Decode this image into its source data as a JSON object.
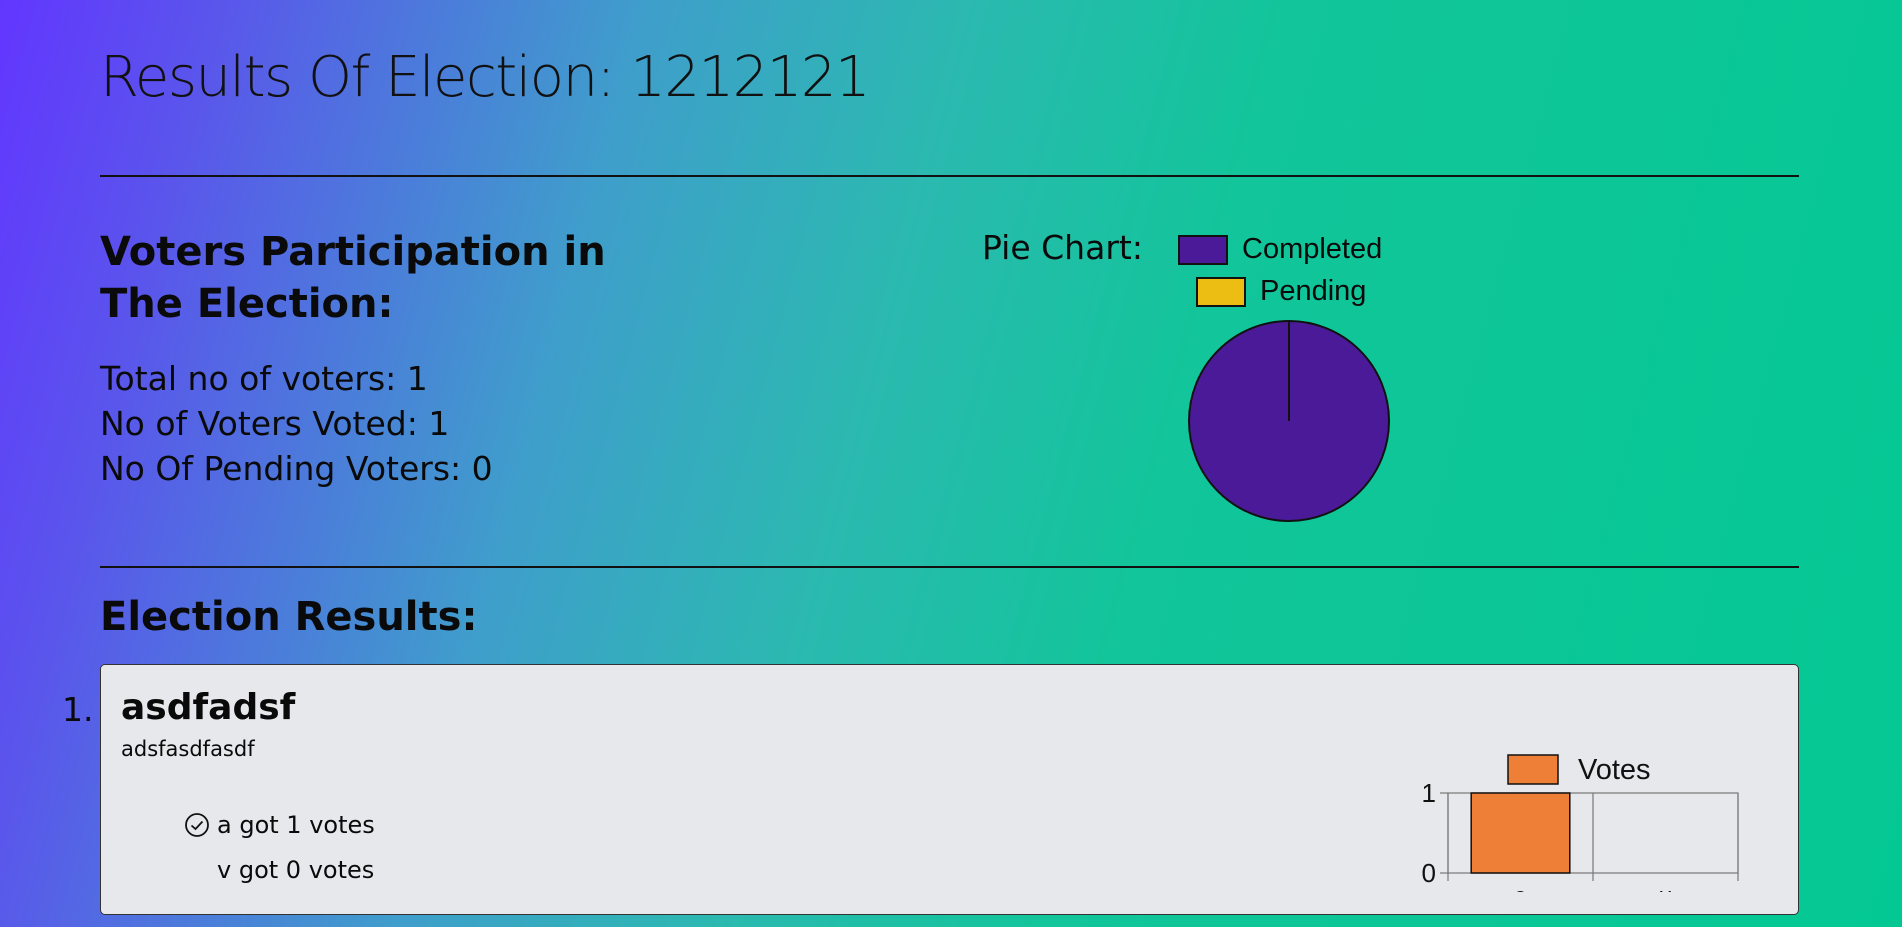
{
  "page": {
    "title": "Results Of Election: 1212121"
  },
  "participation": {
    "heading": "Voters Participation in The Election:",
    "total_label": "Total no of voters: 1",
    "voted_label": "No of Voters Voted: 1",
    "pending_label": "No Of Pending Voters: 0",
    "pie_label": "Pie Chart:"
  },
  "results": {
    "heading": "Election Results:",
    "items": [
      {
        "number": "1.",
        "title": "asdfadsf",
        "description": "adsfasdfasdf",
        "vote_lines": [
          "a got 1 votes",
          "v got 0 votes"
        ]
      }
    ]
  },
  "icons": {
    "winner": "check-circle-icon"
  },
  "colors": {
    "completed": "#4b1a98",
    "pending": "#ecbd12",
    "votes": "#ed7f36"
  },
  "chart_data": [
    {
      "type": "pie",
      "labels": [
        "Completed",
        "Pending"
      ],
      "values": [
        1,
        0
      ],
      "legend": [
        "Completed",
        "Pending"
      ],
      "legend_position": "top"
    },
    {
      "type": "bar",
      "categories": [
        "a",
        "v"
      ],
      "series": [
        {
          "name": "Votes",
          "values": [
            1,
            0
          ]
        }
      ],
      "ylim": [
        0,
        1
      ],
      "yticks": [
        0,
        1
      ],
      "legend_position": "top"
    }
  ]
}
